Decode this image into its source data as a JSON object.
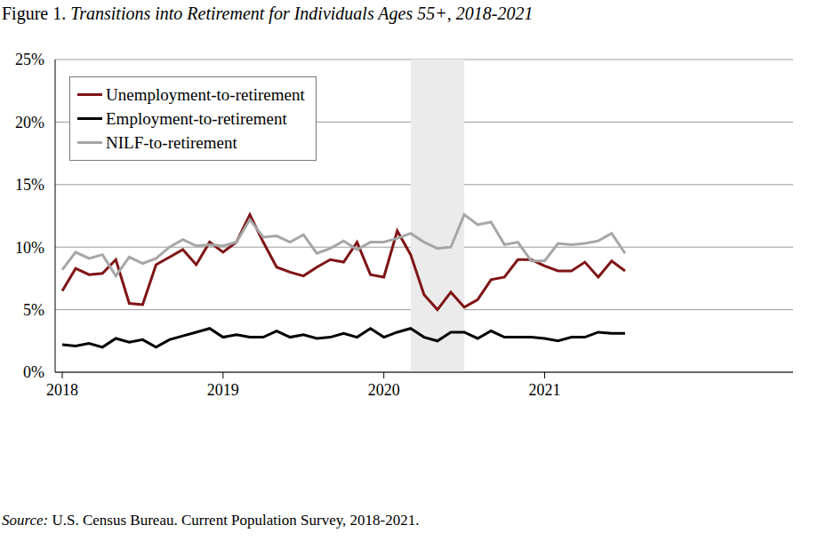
{
  "chart_data": {
    "type": "line",
    "title": "Figure 1. Transitions into Retirement for Individuals Ages 55+, 2018-2021",
    "source": "Source: U.S. Census Bureau. Current Population Survey, 2018-2021.",
    "categories": [
      "2018",
      null,
      null,
      null,
      null,
      null,
      null,
      null,
      null,
      null,
      null,
      null,
      "2019",
      null,
      null,
      null,
      null,
      null,
      null,
      null,
      null,
      null,
      null,
      null,
      "2020",
      null,
      null,
      null,
      null,
      null,
      null,
      null,
      null,
      null,
      null,
      null,
      "2021",
      null,
      null,
      null,
      null,
      null,
      null
    ],
    "series": [
      {
        "name": "Unemployment-to-retirement",
        "color": "#7f1416",
        "values": [
          6.5,
          8.3,
          7.8,
          7.9,
          9.0,
          5.5,
          5.4,
          8.6,
          9.2,
          9.8,
          8.6,
          10.4,
          9.6,
          10.4,
          12.6,
          10.4,
          8.4,
          8.0,
          7.7,
          8.4,
          9.0,
          8.8,
          10.4,
          7.8,
          7.6,
          11.3,
          9.4,
          6.2,
          5.0,
          6.4,
          5.2,
          5.8,
          7.4,
          7.6,
          9.0,
          9.0,
          8.5,
          8.1,
          8.1,
          8.8,
          7.6,
          8.9,
          8.1
        ]
      },
      {
        "name": "Employment-to-retirement",
        "color": "#000000",
        "values": [
          2.2,
          2.1,
          2.3,
          2.0,
          2.7,
          2.4,
          2.6,
          2.0,
          2.6,
          2.9,
          3.2,
          3.5,
          2.8,
          3.0,
          2.8,
          2.8,
          3.3,
          2.8,
          3.0,
          2.7,
          2.8,
          3.1,
          2.8,
          3.5,
          2.8,
          3.2,
          3.5,
          2.8,
          2.5,
          3.2,
          3.2,
          2.7,
          3.3,
          2.8,
          2.8,
          2.8,
          2.7,
          2.5,
          2.8,
          2.8,
          3.2,
          3.1,
          3.1
        ]
      },
      {
        "name": "NILF-to-retirement",
        "color": "#a6a6a6",
        "values": [
          8.2,
          9.6,
          9.1,
          9.4,
          7.7,
          9.2,
          8.7,
          9.1,
          10.0,
          10.6,
          10.1,
          10.2,
          10.1,
          10.4,
          12.2,
          10.8,
          10.9,
          10.4,
          11.0,
          9.5,
          9.9,
          10.5,
          9.8,
          10.4,
          10.4,
          10.7,
          11.1,
          10.4,
          9.9,
          10.0,
          12.6,
          11.8,
          12.0,
          10.2,
          10.4,
          8.9,
          8.9,
          10.3,
          10.2,
          10.3,
          10.5,
          11.1,
          9.5
        ]
      }
    ],
    "ylim": [
      0,
      25
    ],
    "yticks": [
      {
        "value": 0,
        "label": "0%"
      },
      {
        "value": 5,
        "label": "5%"
      },
      {
        "value": 10,
        "label": "10%"
      },
      {
        "value": 15,
        "label": "15%"
      },
      {
        "value": 20,
        "label": "20%"
      },
      {
        "value": 25,
        "label": "25%"
      }
    ],
    "grid": true,
    "legend": "upper left",
    "shaded": {
      "from": 26,
      "to": 30
    }
  }
}
